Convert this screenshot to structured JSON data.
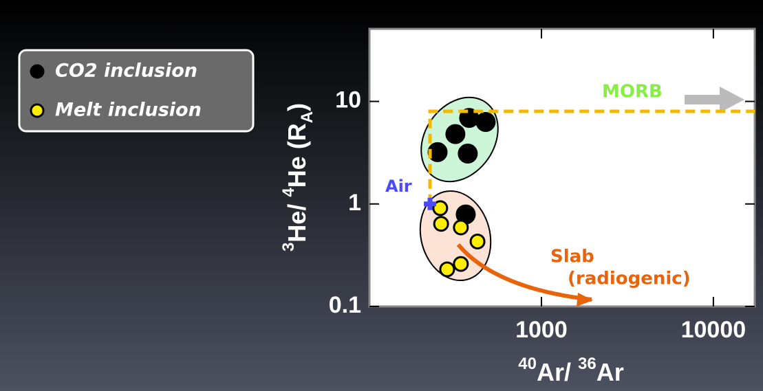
{
  "chart_data": {
    "type": "scatter",
    "xlabel": [
      "40",
      "Ar/ ",
      "36",
      "Ar"
    ],
    "ylabel": [
      "3",
      "He/ ",
      "4",
      "He (R",
      "A",
      ")"
    ],
    "xlog": true,
    "ylog": true,
    "xlim": [
      100,
      17400
    ],
    "ylim": [
      0.1,
      51
    ],
    "xticks": [
      1000,
      10000
    ],
    "yticks": [
      0.1,
      1,
      10
    ],
    "series": [
      {
        "name": "CO2 inclusion",
        "color": "#000000",
        "x": [
          380,
          474,
          316,
          249,
          373,
          363
        ],
        "values": [
          6.9,
          6.3,
          4.8,
          3.2,
          3.1,
          0.79
        ]
      },
      {
        "name": "Melt inclusion",
        "color": "#ffee00",
        "x": [
          258,
          261,
          340,
          425,
          340,
          283
        ],
        "values": [
          0.91,
          0.64,
          0.59,
          0.43,
          0.26,
          0.23
        ]
      }
    ],
    "air": {
      "label": "Air",
      "x": 225,
      "value": 1,
      "color": "#4a4aff"
    },
    "morb": {
      "label": "MORB",
      "value": 8,
      "color": "#88ee44",
      "line_color": "#f5b800"
    },
    "slab": {
      "labels": [
        "Slab",
        "(radiogenic)"
      ],
      "color": "#e8640c"
    }
  }
}
